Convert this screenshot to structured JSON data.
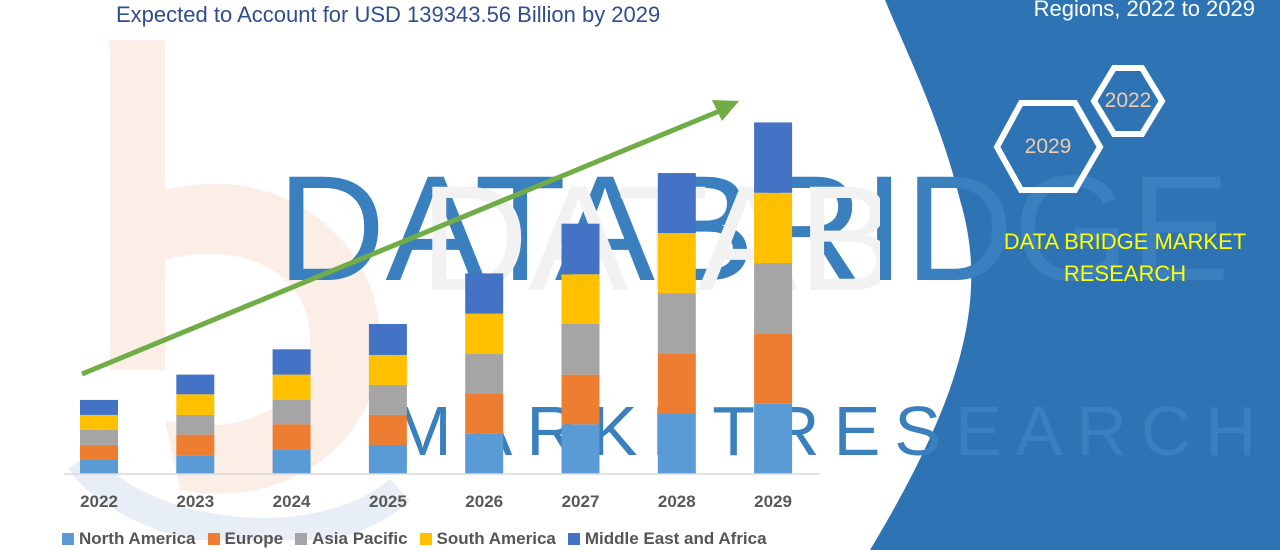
{
  "subtitle": "Expected to Account for USD 139343.56 Billion by 2029",
  "panel": {
    "heading": "Regions, 2022 to 2029",
    "hex_labels": [
      "2022",
      "2029"
    ],
    "brand": [
      "DATA BRIDGE MARKET",
      "RESEARCH"
    ],
    "background_color": "#2e74b5"
  },
  "watermark": {
    "lines": [
      "DATABRIDGE",
      "MARKETRESEARCH"
    ]
  },
  "chart_data": {
    "type": "bar",
    "stacked": true,
    "categories": [
      "2022",
      "2023",
      "2024",
      "2025",
      "2026",
      "2027",
      "2028",
      "2029"
    ],
    "series": [
      {
        "name": "North America",
        "color": "#5b9bd5",
        "values": [
          15,
          20,
          26,
          31,
          43,
          53,
          64,
          75
        ]
      },
      {
        "name": "Europe",
        "color": "#ed7d31",
        "values": [
          16,
          22,
          27,
          32,
          43,
          53,
          64,
          75
        ]
      },
      {
        "name": "Asia Pacific",
        "color": "#a5a5a5",
        "values": [
          16,
          21,
          26,
          32,
          42,
          54,
          65,
          75
        ]
      },
      {
        "name": "South America",
        "color": "#ffc000",
        "values": [
          16,
          22,
          27,
          32,
          43,
          53,
          64,
          75
        ]
      },
      {
        "name": "Middle East and Africa",
        "color": "#4472c4",
        "values": [
          16,
          21,
          27,
          33,
          43,
          54,
          64,
          75
        ]
      }
    ],
    "trend_arrow_color": "#70ad47",
    "ylim": [
      0,
      400
    ],
    "grid": false,
    "legend_position": "bottom"
  }
}
